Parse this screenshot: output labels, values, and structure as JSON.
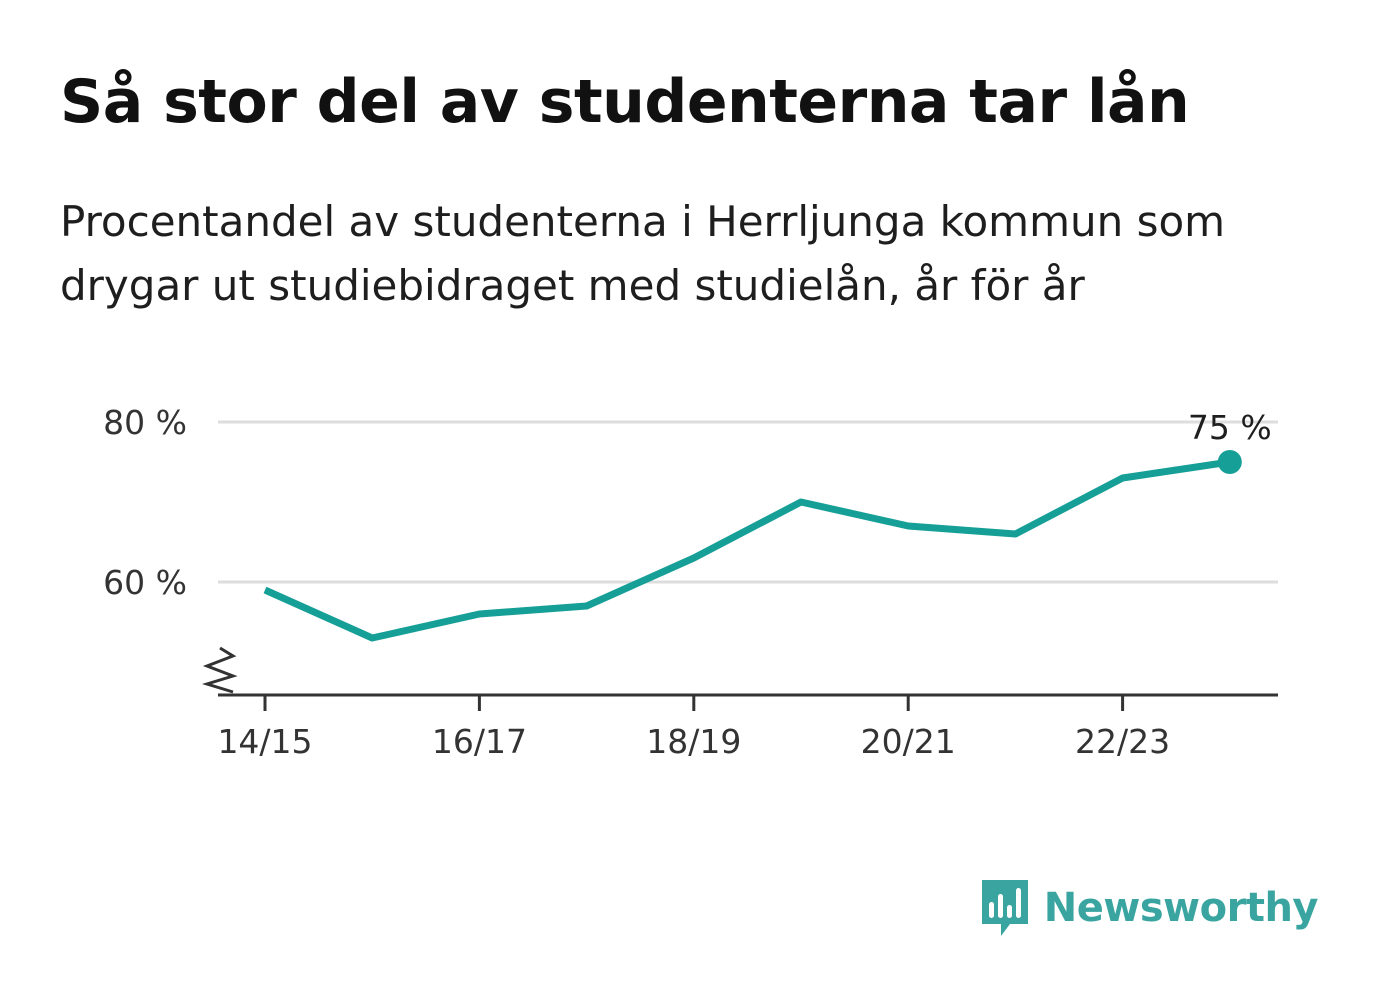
{
  "header": {
    "title": "Så stor del av studenterna tar lån",
    "subtitle": "Procentandel av studenterna i Herrljunga kommun som drygar ut studiebidraget med studielån, år för år"
  },
  "brand": {
    "name": "Newsworthy",
    "icon": "bar-chart-speech-bubble-icon",
    "color": "#3aa5a0"
  },
  "colors": {
    "line": "#159f97",
    "grid": "#dddddd",
    "axis": "#333333"
  },
  "chart_data": {
    "type": "line",
    "title": "Så stor del av studenterna tar lån",
    "subtitle": "Procentandel av studenterna i Herrljunga kommun som drygar ut studiebidraget med studielån, år för år",
    "x": [
      "14/15",
      "15/16",
      "16/17",
      "17/18",
      "18/19",
      "19/20",
      "20/21",
      "21/22",
      "22/23",
      "23/24"
    ],
    "x_tick_labels": [
      "14/15",
      "16/17",
      "18/19",
      "20/21",
      "22/23"
    ],
    "series": [
      {
        "values": [
          59,
          53,
          56,
          57,
          63,
          70,
          67,
          66,
          73,
          75
        ]
      }
    ],
    "y_ticks": [
      60,
      80
    ],
    "y_tick_labels": [
      "60 %",
      "80 %"
    ],
    "y_unit": "%",
    "ylim": [
      46,
      80
    ],
    "y_axis_break": true,
    "grid": true,
    "end_label": "75 %",
    "xlabel": "",
    "ylabel": ""
  }
}
